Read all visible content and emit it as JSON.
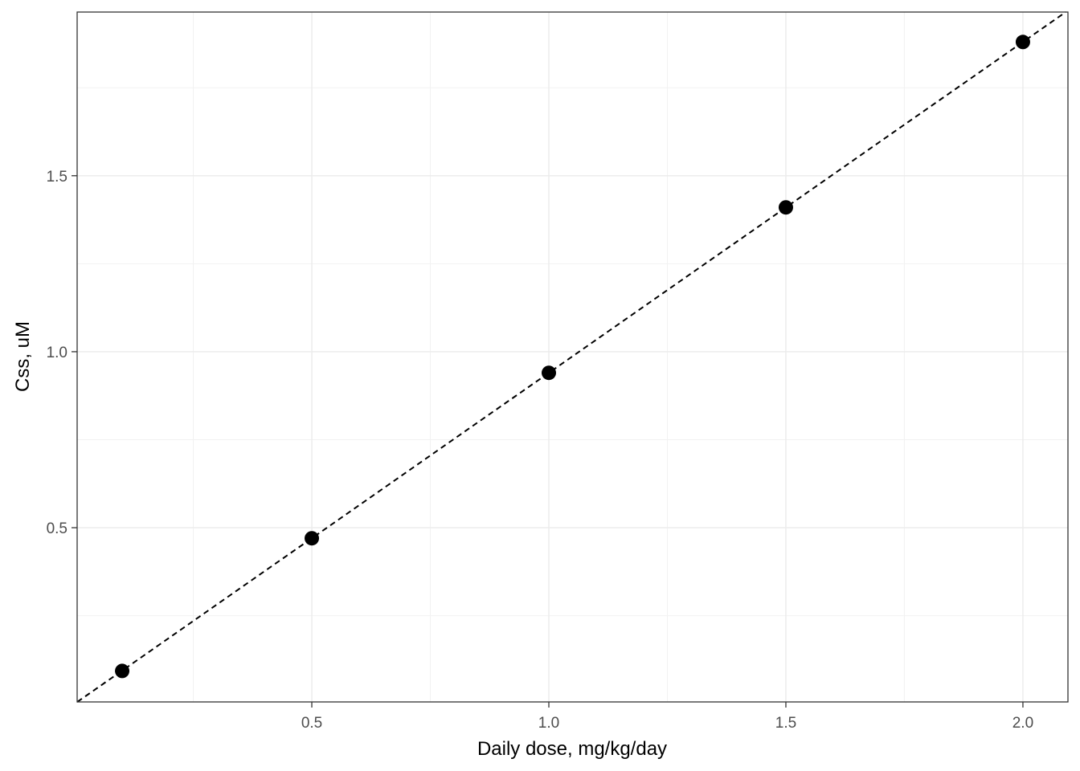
{
  "chart_data": {
    "type": "scatter",
    "title": "",
    "xlabel": "Daily dose, mg/kg/day",
    "ylabel": "Css, uM",
    "xlim": [
      0.005,
      2.095
    ],
    "ylim": [
      0.005,
      1.965
    ],
    "x_ticks": [
      0.5,
      1.0,
      1.5,
      2.0
    ],
    "x_tick_labels": [
      "0.5",
      "1.0",
      "1.5",
      "2.0"
    ],
    "y_ticks": [
      0.5,
      1.0,
      1.5
    ],
    "y_tick_labels": [
      "0.5",
      "1.0",
      "1.5"
    ],
    "grid": true,
    "series": [
      {
        "x": [
          0.1,
          0.5,
          1.0,
          1.5,
          2.0
        ],
        "y": [
          0.093,
          0.47,
          0.94,
          1.41,
          1.88
        ]
      }
    ],
    "reference_line": {
      "style": "dashed",
      "slope": 0.94,
      "intercept": 0
    },
    "colors": {
      "points": "#000000",
      "grid": "#ebebeb",
      "border": "#333333",
      "reference_line": "#000000"
    }
  }
}
